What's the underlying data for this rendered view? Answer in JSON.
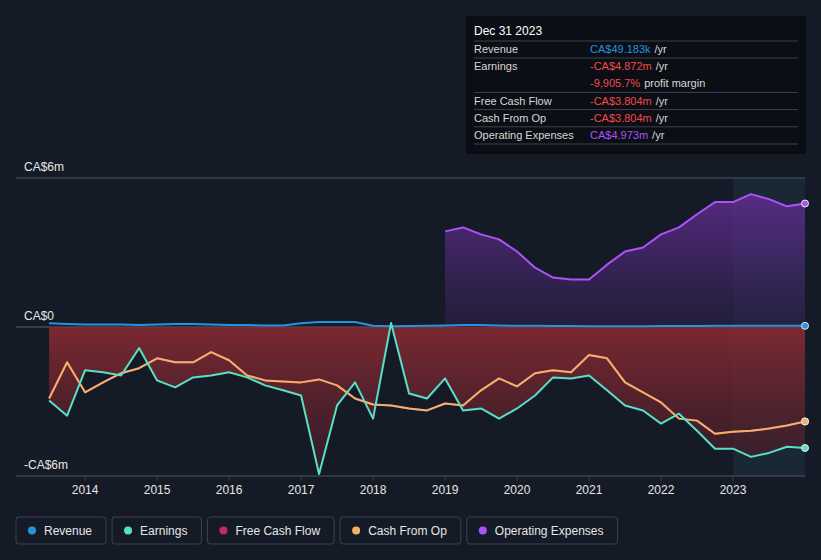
{
  "chart_data": {
    "type": "line",
    "x": [
      2013.5,
      2013.75,
      2014,
      2014.25,
      2014.5,
      2014.75,
      2015,
      2015.25,
      2015.5,
      2015.75,
      2016,
      2016.25,
      2016.5,
      2016.75,
      2017,
      2017.25,
      2017.5,
      2017.75,
      2018,
      2018.25,
      2018.5,
      2018.75,
      2019,
      2019.25,
      2019.5,
      2019.75,
      2020,
      2020.25,
      2020.5,
      2020.75,
      2021,
      2021.25,
      2021.5,
      2021.75,
      2022,
      2022.25,
      2022.5,
      2022.75,
      2023,
      2023.25,
      2023.5,
      2023.75,
      2024
    ],
    "xlim": [
      2013.04,
      2024
    ],
    "xticks": [
      2014,
      2015,
      2016,
      2017,
      2018,
      2019,
      2020,
      2021,
      2022,
      2023
    ],
    "ylim": [
      -6,
      6
    ],
    "yticks": [
      {
        "value": -6,
        "label": "-CA$6m"
      },
      {
        "value": 0,
        "label": "CA$0"
      },
      {
        "value": 6,
        "label": "CA$6m"
      }
    ],
    "legend": "bottom",
    "series": [
      {
        "name": "Revenue",
        "color": "#2394df",
        "type": "line",
        "values": [
          0.15,
          0.12,
          0.1,
          0.1,
          0.1,
          0.08,
          0.1,
          0.12,
          0.12,
          0.1,
          0.08,
          0.08,
          0.06,
          0.06,
          0.15,
          0.2,
          0.2,
          0.2,
          0.05,
          0.03,
          0.04,
          0.05,
          0.06,
          0.08,
          0.08,
          0.06,
          0.05,
          0.05,
          0.04,
          0.04,
          0.03,
          0.03,
          0.03,
          0.03,
          0.04,
          0.04,
          0.04,
          0.05,
          0.05,
          0.05,
          0.05,
          0.05,
          0.049
        ]
      },
      {
        "name": "Earnings",
        "color": "#58e0c6",
        "type": "area",
        "values": [
          -2.96,
          -3.57,
          -1.74,
          -1.82,
          -1.95,
          -0.85,
          -2.15,
          -2.43,
          -2.03,
          -1.95,
          -1.82,
          -2.03,
          -2.35,
          -2.55,
          -2.76,
          -5.92,
          -3.16,
          -2.23,
          -3.69,
          0.16,
          -2.68,
          -2.88,
          -2.07,
          -3.36,
          -3.28,
          -3.69,
          -3.28,
          -2.76,
          -2.03,
          -2.07,
          -1.95,
          -2.55,
          -3.16,
          -3.36,
          -3.89,
          -3.49,
          -4.18,
          -4.9,
          -4.9,
          -5.23,
          -5.07,
          -4.82,
          -4.872
        ]
      },
      {
        "name": "Free Cash Flow",
        "color": "#c3296f",
        "type": "line",
        "values": [
          -2.88,
          -1.42,
          -2.63,
          -2.23,
          -1.86,
          -1.66,
          -1.26,
          -1.42,
          -1.42,
          -1.01,
          -1.34,
          -1.95,
          -2.15,
          -2.19,
          -2.23,
          -2.11,
          -2.35,
          -2.88,
          -3.12,
          -3.16,
          -3.28,
          -3.36,
          -3.08,
          -3.16,
          -2.55,
          -2.07,
          -2.39,
          -1.86,
          -1.74,
          -1.82,
          -1.13,
          -1.26,
          -2.23,
          -2.63,
          -3.04,
          -3.69,
          -3.77,
          -4.3,
          -4.22,
          -4.18,
          -4.09,
          -3.97,
          -3.804
        ]
      },
      {
        "name": "Cash From Op",
        "color": "#f0b268",
        "type": "line",
        "values": [
          -2.88,
          -1.42,
          -2.63,
          -2.23,
          -1.86,
          -1.66,
          -1.26,
          -1.42,
          -1.42,
          -1.01,
          -1.34,
          -1.95,
          -2.15,
          -2.19,
          -2.23,
          -2.11,
          -2.35,
          -2.88,
          -3.12,
          -3.16,
          -3.28,
          -3.36,
          -3.08,
          -3.16,
          -2.55,
          -2.07,
          -2.39,
          -1.86,
          -1.74,
          -1.82,
          -1.13,
          -1.26,
          -2.23,
          -2.63,
          -3.04,
          -3.69,
          -3.77,
          -4.3,
          -4.22,
          -4.18,
          -4.09,
          -3.97,
          -3.804
        ]
      },
      {
        "name": "Operating Expenses",
        "color": "#ad52fa",
        "type": "area",
        "values": [
          null,
          null,
          null,
          null,
          null,
          null,
          null,
          null,
          null,
          null,
          null,
          null,
          null,
          null,
          null,
          null,
          null,
          null,
          null,
          null,
          null,
          null,
          3.85,
          4.01,
          3.73,
          3.53,
          3.04,
          2.39,
          1.99,
          1.91,
          1.91,
          2.51,
          3.04,
          3.2,
          3.73,
          4.01,
          4.54,
          5.03,
          5.03,
          5.35,
          5.15,
          4.86,
          4.973
        ]
      }
    ]
  },
  "tooltip": {
    "date": "Dec 31 2023",
    "rows": [
      {
        "label": "Revenue",
        "value": "CA$49.183k",
        "unit": "/yr",
        "color": "#2394df"
      },
      {
        "label": "Earnings",
        "value": "-CA$4.872m",
        "unit": "/yr",
        "color": "#f04a4a"
      },
      {
        "value": "-9,905.7%",
        "unit": "profit margin",
        "color": "#f04a4a"
      },
      {
        "label": "Free Cash Flow",
        "value": "-CA$3.804m",
        "unit": "/yr",
        "color": "#f04a4a"
      },
      {
        "label": "Cash From Op",
        "value": "-CA$3.804m",
        "unit": "/yr",
        "color": "#f04a4a"
      },
      {
        "label": "Operating Expenses",
        "value": "CA$4.973m",
        "unit": "/yr",
        "color": "#ad52fa"
      }
    ]
  }
}
